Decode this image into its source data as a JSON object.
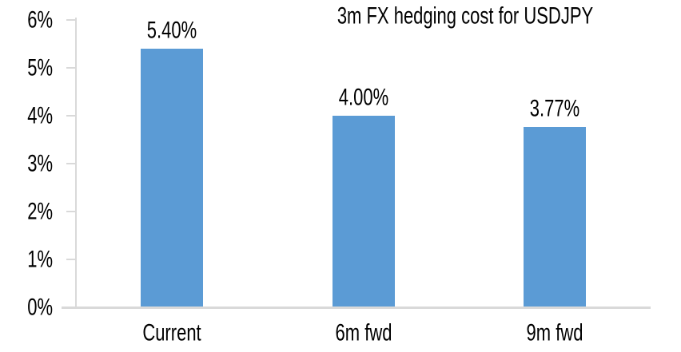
{
  "chart_data": {
    "type": "bar",
    "title": "3m FX hedging cost for USDJPY",
    "categories": [
      "Current",
      "6m fwd",
      "9m fwd"
    ],
    "values": [
      5.4,
      4.0,
      3.77
    ],
    "data_labels": [
      "5.40%",
      "4.00%",
      "3.77%"
    ],
    "xlabel": "",
    "ylabel": "",
    "ylim": [
      0,
      6
    ],
    "ytick_labels": [
      "0%",
      "1%",
      "2%",
      "3%",
      "4%",
      "5%",
      "6%"
    ],
    "grid": false,
    "legend": "none",
    "colors": {
      "bar_fill": "#5B9BD5",
      "axis_line": "#D9D9D9",
      "text": "#000000",
      "background": "#FFFFFF"
    }
  }
}
